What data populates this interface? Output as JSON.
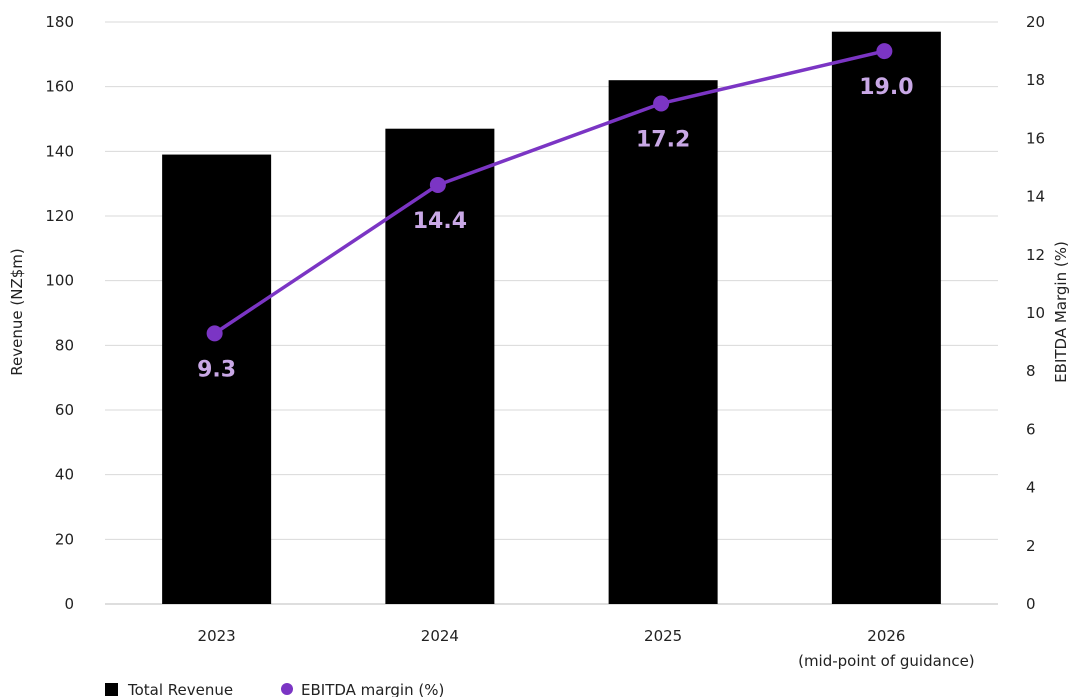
{
  "chart_data": {
    "type": "bar",
    "categories": [
      "2023",
      "2024",
      "2025",
      "2026"
    ],
    "category_sublabels": [
      "",
      "",
      "",
      "(mid-point of guidance)"
    ],
    "series": [
      {
        "name": "Total Revenue",
        "type": "bar",
        "axis": "left",
        "color": "#000000",
        "values": [
          139,
          147,
          162,
          177
        ]
      },
      {
        "name": "EBITDA margin (%)",
        "type": "line",
        "axis": "right",
        "color": "#7B35C4",
        "values": [
          9.3,
          14.4,
          17.2,
          19.0
        ],
        "data_labels": [
          "9.3",
          "14.4",
          "17.2",
          "19.0"
        ],
        "label_color": "#C9A8E6"
      }
    ],
    "ylabel": "Revenue (NZ$m)",
    "y2label": "EBITDA Margin (%)",
    "ylim": [
      0,
      180
    ],
    "y2lim": [
      0,
      20
    ],
    "yticks": [
      "0",
      "20",
      "40",
      "60",
      "80",
      "100",
      "120",
      "140",
      "160",
      "180"
    ],
    "y2ticks": [
      "0",
      "2",
      "4",
      "6",
      "8",
      "10",
      "12",
      "14",
      "16",
      "18",
      "20"
    ],
    "grid": true,
    "legend_position": "bottom-left"
  }
}
